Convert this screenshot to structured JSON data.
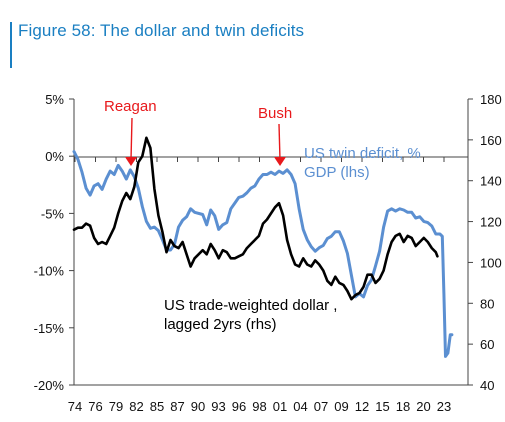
{
  "figure": {
    "title": "Figure 58: The dollar and twin deficits"
  },
  "chart_data": {
    "type": "line",
    "x_ticks": [
      "74",
      "76",
      "79",
      "82",
      "85",
      "87",
      "90",
      "93",
      "96",
      "98",
      "01",
      "04",
      "07",
      "09",
      "12",
      "15",
      "18",
      "20",
      "23"
    ],
    "xlim": [
      1974,
      2023
    ],
    "y_left": {
      "ticks": [
        "5%",
        "0%",
        "-5%",
        "-10%",
        "-15%",
        "-20%"
      ],
      "range": [
        -20,
        5
      ],
      "unit": "%"
    },
    "y_right": {
      "ticks": [
        "180",
        "160",
        "140",
        "120",
        "100",
        "80",
        "60",
        "40"
      ],
      "range": [
        40,
        180
      ]
    },
    "grid": false,
    "annotations": {
      "reagan": {
        "text": "Reagan",
        "color": "#e8191c",
        "x": 1982,
        "y_left": 0
      },
      "bush": {
        "text": "Bush",
        "color": "#e8191c",
        "x": 2001,
        "y_left": 0
      }
    },
    "series": [
      {
        "name_lines": [
          "US twin deficit, %",
          "GDP (lhs)"
        ],
        "axis": "left",
        "color": "#5b8fd1",
        "points": [
          [
            1974.0,
            0.4
          ],
          [
            1974.5,
            -0.3
          ],
          [
            1975.0,
            -1.4
          ],
          [
            1975.5,
            -2.8
          ],
          [
            1976.0,
            -3.4
          ],
          [
            1976.5,
            -2.6
          ],
          [
            1977.0,
            -2.4
          ],
          [
            1977.5,
            -2.9
          ],
          [
            1978.0,
            -2.0
          ],
          [
            1978.5,
            -1.3
          ],
          [
            1979.0,
            -1.6
          ],
          [
            1979.5,
            -0.8
          ],
          [
            1980.0,
            -1.3
          ],
          [
            1980.5,
            -2.0
          ],
          [
            1981.0,
            -1.2
          ],
          [
            1981.5,
            -1.8
          ],
          [
            1982.0,
            -2.8
          ],
          [
            1982.5,
            -4.4
          ],
          [
            1983.0,
            -5.7
          ],
          [
            1983.5,
            -6.3
          ],
          [
            1984.0,
            -6.2
          ],
          [
            1984.5,
            -6.5
          ],
          [
            1985.0,
            -7.3
          ],
          [
            1985.5,
            -8.2
          ],
          [
            1986.0,
            -8.2
          ],
          [
            1986.5,
            -7.7
          ],
          [
            1987.0,
            -6.2
          ],
          [
            1987.5,
            -5.6
          ],
          [
            1988.0,
            -5.3
          ],
          [
            1988.5,
            -4.6
          ],
          [
            1989.0,
            -4.9
          ],
          [
            1990.0,
            -5.1
          ],
          [
            1990.5,
            -6.0
          ],
          [
            1991.0,
            -4.7
          ],
          [
            1991.5,
            -5.2
          ],
          [
            1992.0,
            -6.4
          ],
          [
            1992.5,
            -6.0
          ],
          [
            1993.0,
            -5.8
          ],
          [
            1993.5,
            -4.6
          ],
          [
            1994.0,
            -4.1
          ],
          [
            1994.5,
            -3.6
          ],
          [
            1995.0,
            -3.5
          ],
          [
            1995.5,
            -3.2
          ],
          [
            1996.0,
            -2.8
          ],
          [
            1996.5,
            -2.6
          ],
          [
            1997.0,
            -2.0
          ],
          [
            1997.5,
            -1.6
          ],
          [
            1998.0,
            -1.6
          ],
          [
            1998.5,
            -1.4
          ],
          [
            1999.0,
            -1.6
          ],
          [
            1999.5,
            -1.3
          ],
          [
            2000.0,
            -1.5
          ],
          [
            2000.5,
            -1.2
          ],
          [
            2001.0,
            -1.6
          ],
          [
            2001.5,
            -2.4
          ],
          [
            2002.0,
            -4.6
          ],
          [
            2002.5,
            -6.4
          ],
          [
            2003.0,
            -7.3
          ],
          [
            2003.5,
            -7.9
          ],
          [
            2004.0,
            -8.3
          ],
          [
            2004.5,
            -8.0
          ],
          [
            2005.0,
            -7.8
          ],
          [
            2005.5,
            -7.2
          ],
          [
            2006.0,
            -7.0
          ],
          [
            2006.5,
            -6.6
          ],
          [
            2007.0,
            -6.6
          ],
          [
            2007.5,
            -7.4
          ],
          [
            2008.0,
            -8.5
          ],
          [
            2008.5,
            -10.4
          ],
          [
            2009.0,
            -12.3
          ],
          [
            2009.5,
            -12.0
          ],
          [
            2010.0,
            -12.3
          ],
          [
            2010.5,
            -11.3
          ],
          [
            2011.0,
            -10.8
          ],
          [
            2011.5,
            -9.6
          ],
          [
            2012.0,
            -8.3
          ],
          [
            2012.5,
            -6.2
          ],
          [
            2013.0,
            -4.8
          ],
          [
            2013.5,
            -4.6
          ],
          [
            2014.0,
            -4.8
          ],
          [
            2014.5,
            -4.6
          ],
          [
            2015.0,
            -4.7
          ],
          [
            2015.5,
            -4.9
          ],
          [
            2016.0,
            -4.9
          ],
          [
            2016.5,
            -5.4
          ],
          [
            2017.0,
            -5.3
          ],
          [
            2017.5,
            -5.7
          ],
          [
            2018.0,
            -5.8
          ],
          [
            2018.5,
            -6.1
          ],
          [
            2019.0,
            -6.8
          ],
          [
            2019.5,
            -6.8
          ],
          [
            2019.8,
            -7.0
          ],
          [
            2020.0,
            -12.0
          ],
          [
            2020.2,
            -17.5
          ],
          [
            2020.5,
            -17.2
          ],
          [
            2020.8,
            -15.6
          ],
          [
            2021.0,
            -15.6
          ]
        ]
      },
      {
        "name_lines": [
          "US trade-weighted dollar ,",
          "lagged 2yrs (rhs)"
        ],
        "axis": "right",
        "color": "#000000",
        "points": [
          [
            1974.0,
            116
          ],
          [
            1974.5,
            117
          ],
          [
            1975.0,
            117
          ],
          [
            1975.5,
            119
          ],
          [
            1976.0,
            118
          ],
          [
            1976.5,
            112
          ],
          [
            1977.0,
            109
          ],
          [
            1977.5,
            110
          ],
          [
            1978.0,
            109
          ],
          [
            1978.5,
            113
          ],
          [
            1979.0,
            117
          ],
          [
            1979.5,
            124
          ],
          [
            1980.0,
            130
          ],
          [
            1980.5,
            134
          ],
          [
            1981.0,
            131
          ],
          [
            1981.5,
            137
          ],
          [
            1982.0,
            149
          ],
          [
            1982.5,
            152
          ],
          [
            1983.0,
            161
          ],
          [
            1983.5,
            156
          ],
          [
            1984.0,
            136
          ],
          [
            1984.5,
            123
          ],
          [
            1985.0,
            115
          ],
          [
            1985.5,
            105
          ],
          [
            1986.0,
            111
          ],
          [
            1986.5,
            108
          ],
          [
            1987.0,
            107
          ],
          [
            1987.5,
            110
          ],
          [
            1988.0,
            104
          ],
          [
            1988.5,
            98
          ],
          [
            1989.0,
            102
          ],
          [
            1989.5,
            104
          ],
          [
            1990.0,
            106
          ],
          [
            1990.5,
            104
          ],
          [
            1991.0,
            109
          ],
          [
            1991.5,
            106
          ],
          [
            1992.0,
            102
          ],
          [
            1992.5,
            106
          ],
          [
            1993.0,
            105
          ],
          [
            1993.5,
            102
          ],
          [
            1994.0,
            102
          ],
          [
            1994.5,
            103
          ],
          [
            1995.0,
            104
          ],
          [
            1995.5,
            107
          ],
          [
            1996.0,
            109
          ],
          [
            1996.5,
            111
          ],
          [
            1997.0,
            113
          ],
          [
            1997.5,
            119
          ],
          [
            1998.0,
            121
          ],
          [
            1998.5,
            124
          ],
          [
            1999.0,
            127
          ],
          [
            1999.5,
            129
          ],
          [
            2000.0,
            123
          ],
          [
            2000.5,
            111
          ],
          [
            2001.0,
            104
          ],
          [
            2001.5,
            99
          ],
          [
            2002.0,
            98
          ],
          [
            2002.5,
            102
          ],
          [
            2003.0,
            99
          ],
          [
            2003.5,
            98
          ],
          [
            2004.0,
            101
          ],
          [
            2004.5,
            99
          ],
          [
            2005.0,
            96
          ],
          [
            2005.5,
            91
          ],
          [
            2006.0,
            89
          ],
          [
            2006.5,
            93
          ],
          [
            2007.0,
            90
          ],
          [
            2007.5,
            89
          ],
          [
            2008.0,
            86
          ],
          [
            2008.5,
            82
          ],
          [
            2009.0,
            84
          ],
          [
            2009.5,
            85
          ],
          [
            2010.0,
            88
          ],
          [
            2010.5,
            94
          ],
          [
            2011.0,
            94
          ],
          [
            2011.5,
            90
          ],
          [
            2012.0,
            92
          ],
          [
            2012.5,
            96
          ],
          [
            2013.0,
            104
          ],
          [
            2013.5,
            110
          ],
          [
            2014.0,
            113
          ],
          [
            2014.5,
            114
          ],
          [
            2015.0,
            110
          ],
          [
            2015.5,
            113
          ],
          [
            2016.0,
            112
          ],
          [
            2016.5,
            108
          ],
          [
            2017.0,
            110
          ],
          [
            2017.5,
            112
          ],
          [
            2018.0,
            110
          ],
          [
            2018.5,
            107
          ],
          [
            2019.0,
            105
          ],
          [
            2019.2,
            103
          ]
        ]
      }
    ]
  }
}
